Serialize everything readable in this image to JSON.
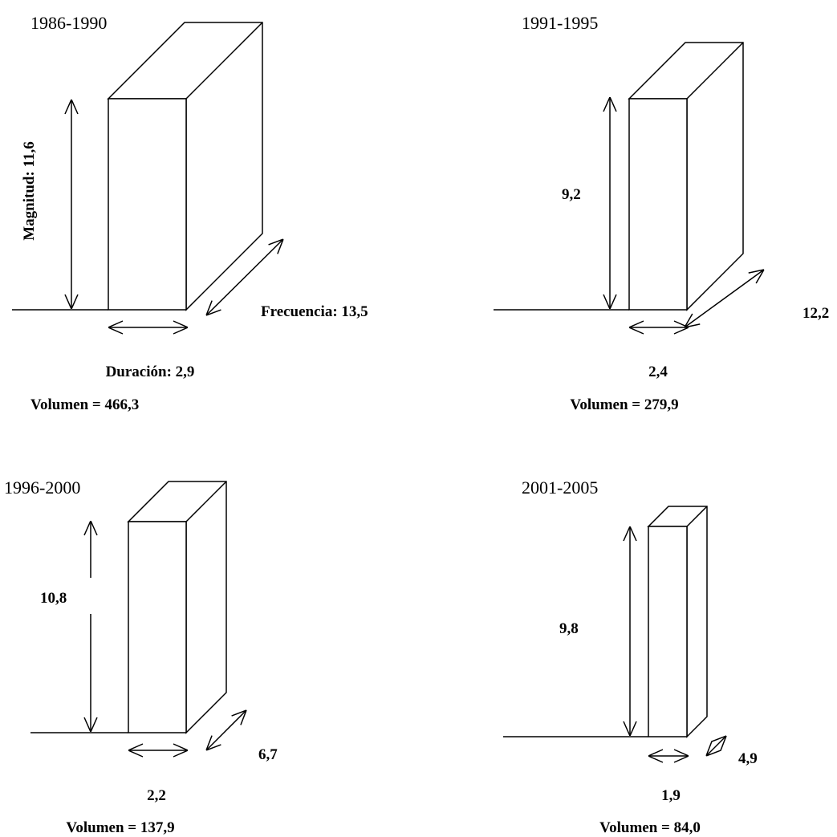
{
  "panels": [
    {
      "period": "1986-1990",
      "magnitude": "Magnitud: 11,6",
      "duration": "Duración: 2,9",
      "frequency": "Frecuencia: 13,5",
      "volume": "Volumen = 466,3"
    },
    {
      "period": "1991-1995",
      "magnitude": "9,2",
      "duration": "2,4",
      "frequency": "12,2",
      "volume": "Volumen = 279,9"
    },
    {
      "period": "1996-2000",
      "magnitude": "10,8",
      "duration": "2,2",
      "frequency": "6,7",
      "volume": "Volumen = 137,9"
    },
    {
      "period": "2001-2005",
      "magnitude": "9,8",
      "duration": "1,9",
      "frequency": "4,9",
      "volume": "Volumen = 84,0"
    }
  ]
}
